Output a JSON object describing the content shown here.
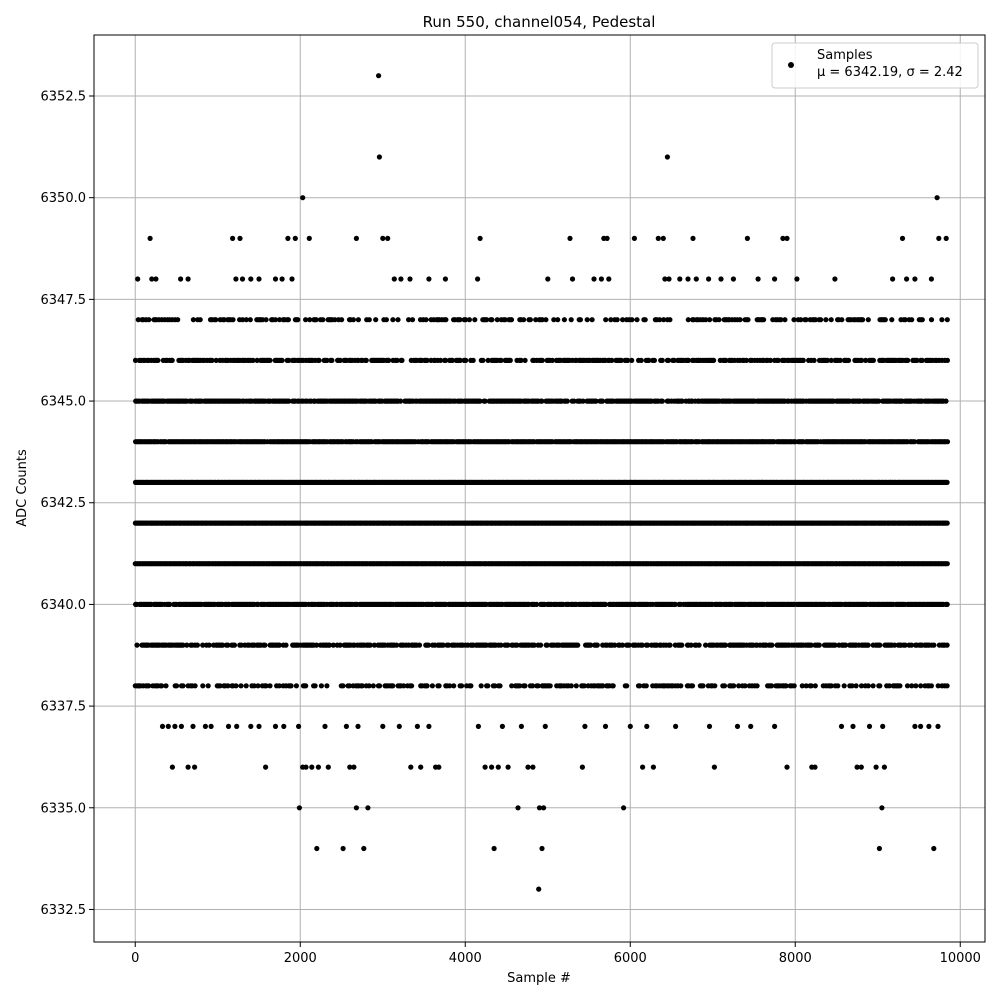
{
  "chart_data": {
    "type": "scatter",
    "title": "Run 550, channel054, Pedestal",
    "xlabel": "Sample #",
    "ylabel": "ADC Counts",
    "xlim": [
      -500,
      10300
    ],
    "ylim": [
      6331.7,
      6354.0
    ],
    "x_ticks": [
      0,
      2000,
      4000,
      6000,
      8000,
      10000
    ],
    "x_tick_labels": [
      "0",
      "2000",
      "4000",
      "6000",
      "8000",
      "10000"
    ],
    "y_ticks": [
      6332.5,
      6335.0,
      6337.5,
      6340.0,
      6342.5,
      6345.0,
      6347.5,
      6350.0,
      6352.5
    ],
    "y_tick_labels": [
      "6332.5",
      "6335.0",
      "6337.5",
      "6340.0",
      "6342.5",
      "6345.0",
      "6347.5",
      "6350.0",
      "6352.5"
    ],
    "grid": true,
    "legend_position": "top-right",
    "marker_color": "#000000",
    "series": [
      {
        "name": "Samples",
        "stats_label": "μ = 6342.19, σ = 2.42",
        "dense_levels": [
          {
            "y": 6347,
            "x_range": [
              0,
              9850
            ],
            "density": 0.35
          },
          {
            "y": 6346,
            "x_range": [
              0,
              9850
            ],
            "density": 0.6
          },
          {
            "y": 6345,
            "x_range": [
              0,
              9850
            ],
            "density": 0.85
          },
          {
            "y": 6344,
            "x_range": [
              0,
              9850
            ],
            "density": 0.95
          },
          {
            "y": 6343,
            "x_range": [
              0,
              9850
            ],
            "density": 1.0
          },
          {
            "y": 6342,
            "x_range": [
              0,
              9850
            ],
            "density": 1.0
          },
          {
            "y": 6341,
            "x_range": [
              0,
              9850
            ],
            "density": 1.0
          },
          {
            "y": 6340,
            "x_range": [
              0,
              9850
            ],
            "density": 0.9
          },
          {
            "y": 6339,
            "x_range": [
              0,
              9850
            ],
            "density": 0.65
          },
          {
            "y": 6338,
            "x_range": [
              0,
              9850
            ],
            "density": 0.4
          }
        ],
        "sparse_points": [
          [
            30,
            6348
          ],
          [
            180,
            6349
          ],
          [
            200,
            6348
          ],
          [
            250,
            6348
          ],
          [
            550,
            6348
          ],
          [
            640,
            6348
          ],
          [
            1180,
            6349
          ],
          [
            1220,
            6348
          ],
          [
            1270,
            6349
          ],
          [
            1300,
            6348
          ],
          [
            1400,
            6348
          ],
          [
            1500,
            6348
          ],
          [
            1700,
            6348
          ],
          [
            1780,
            6348
          ],
          [
            1850,
            6349
          ],
          [
            1900,
            6348
          ],
          [
            1940,
            6349
          ],
          [
            2030,
            6350
          ],
          [
            2110,
            6349
          ],
          [
            2680,
            6349
          ],
          [
            2950,
            6353
          ],
          [
            2960,
            6351
          ],
          [
            3000,
            6349
          ],
          [
            3060,
            6349
          ],
          [
            3140,
            6348
          ],
          [
            3220,
            6348
          ],
          [
            3330,
            6348
          ],
          [
            3560,
            6348
          ],
          [
            3760,
            6348
          ],
          [
            4150,
            6348
          ],
          [
            4180,
            6349
          ],
          [
            5000,
            6348
          ],
          [
            5270,
            6349
          ],
          [
            5300,
            6348
          ],
          [
            5560,
            6348
          ],
          [
            5650,
            6348
          ],
          [
            5680,
            6349
          ],
          [
            5720,
            6349
          ],
          [
            5740,
            6348
          ],
          [
            6050,
            6349
          ],
          [
            6340,
            6349
          ],
          [
            6400,
            6349
          ],
          [
            6420,
            6348
          ],
          [
            6450,
            6351
          ],
          [
            6470,
            6348
          ],
          [
            6600,
            6348
          ],
          [
            6700,
            6348
          ],
          [
            6760,
            6349
          ],
          [
            6800,
            6348
          ],
          [
            6950,
            6348
          ],
          [
            7100,
            6348
          ],
          [
            7250,
            6348
          ],
          [
            7420,
            6349
          ],
          [
            7550,
            6348
          ],
          [
            7750,
            6348
          ],
          [
            7850,
            6349
          ],
          [
            7900,
            6349
          ],
          [
            8020,
            6348
          ],
          [
            8480,
            6348
          ],
          [
            9180,
            6348
          ],
          [
            9300,
            6349
          ],
          [
            9350,
            6348
          ],
          [
            9450,
            6348
          ],
          [
            9650,
            6348
          ],
          [
            9720,
            6350
          ],
          [
            9740,
            6349
          ],
          [
            9830,
            6349
          ],
          [
            330,
            6337
          ],
          [
            400,
            6337
          ],
          [
            450,
            6336
          ],
          [
            480,
            6337
          ],
          [
            560,
            6337
          ],
          [
            640,
            6336
          ],
          [
            700,
            6337
          ],
          [
            720,
            6336
          ],
          [
            850,
            6337
          ],
          [
            920,
            6337
          ],
          [
            1130,
            6337
          ],
          [
            1230,
            6337
          ],
          [
            1400,
            6337
          ],
          [
            1500,
            6337
          ],
          [
            1580,
            6336
          ],
          [
            1700,
            6337
          ],
          [
            1800,
            6337
          ],
          [
            1980,
            6337
          ],
          [
            1990,
            6335
          ],
          [
            2030,
            6336
          ],
          [
            2070,
            6336
          ],
          [
            2140,
            6336
          ],
          [
            2200,
            6334
          ],
          [
            2220,
            6336
          ],
          [
            2300,
            6337
          ],
          [
            2340,
            6336
          ],
          [
            2520,
            6334
          ],
          [
            2560,
            6337
          ],
          [
            2600,
            6336
          ],
          [
            2650,
            6336
          ],
          [
            2680,
            6335
          ],
          [
            2700,
            6337
          ],
          [
            2770,
            6334
          ],
          [
            2820,
            6335
          ],
          [
            3000,
            6337
          ],
          [
            3200,
            6337
          ],
          [
            3340,
            6336
          ],
          [
            3420,
            6337
          ],
          [
            3460,
            6336
          ],
          [
            3560,
            6337
          ],
          [
            3640,
            6336
          ],
          [
            3680,
            6336
          ],
          [
            4160,
            6337
          ],
          [
            4240,
            6336
          ],
          [
            4320,
            6336
          ],
          [
            4350,
            6334
          ],
          [
            4400,
            6336
          ],
          [
            4450,
            6337
          ],
          [
            4520,
            6336
          ],
          [
            4640,
            6335
          ],
          [
            4680,
            6337
          ],
          [
            4760,
            6336
          ],
          [
            4820,
            6336
          ],
          [
            4890,
            6333
          ],
          [
            4900,
            6335
          ],
          [
            4930,
            6334
          ],
          [
            4950,
            6335
          ],
          [
            4970,
            6337
          ],
          [
            5420,
            6336
          ],
          [
            5450,
            6337
          ],
          [
            5700,
            6337
          ],
          [
            5920,
            6335
          ],
          [
            6000,
            6337
          ],
          [
            6150,
            6336
          ],
          [
            6200,
            6337
          ],
          [
            6280,
            6336
          ],
          [
            6550,
            6337
          ],
          [
            6960,
            6337
          ],
          [
            7020,
            6336
          ],
          [
            7300,
            6337
          ],
          [
            7460,
            6337
          ],
          [
            7750,
            6337
          ],
          [
            7900,
            6336
          ],
          [
            8200,
            6336
          ],
          [
            8240,
            6336
          ],
          [
            8560,
            6337
          ],
          [
            8700,
            6337
          ],
          [
            8750,
            6336
          ],
          [
            8800,
            6336
          ],
          [
            8900,
            6337
          ],
          [
            8980,
            6336
          ],
          [
            9020,
            6334
          ],
          [
            9050,
            6335
          ],
          [
            9080,
            6336
          ],
          [
            9060,
            6337
          ],
          [
            9450,
            6337
          ],
          [
            9520,
            6337
          ],
          [
            9620,
            6337
          ],
          [
            9680,
            6334
          ],
          [
            9730,
            6337
          ]
        ]
      }
    ]
  }
}
